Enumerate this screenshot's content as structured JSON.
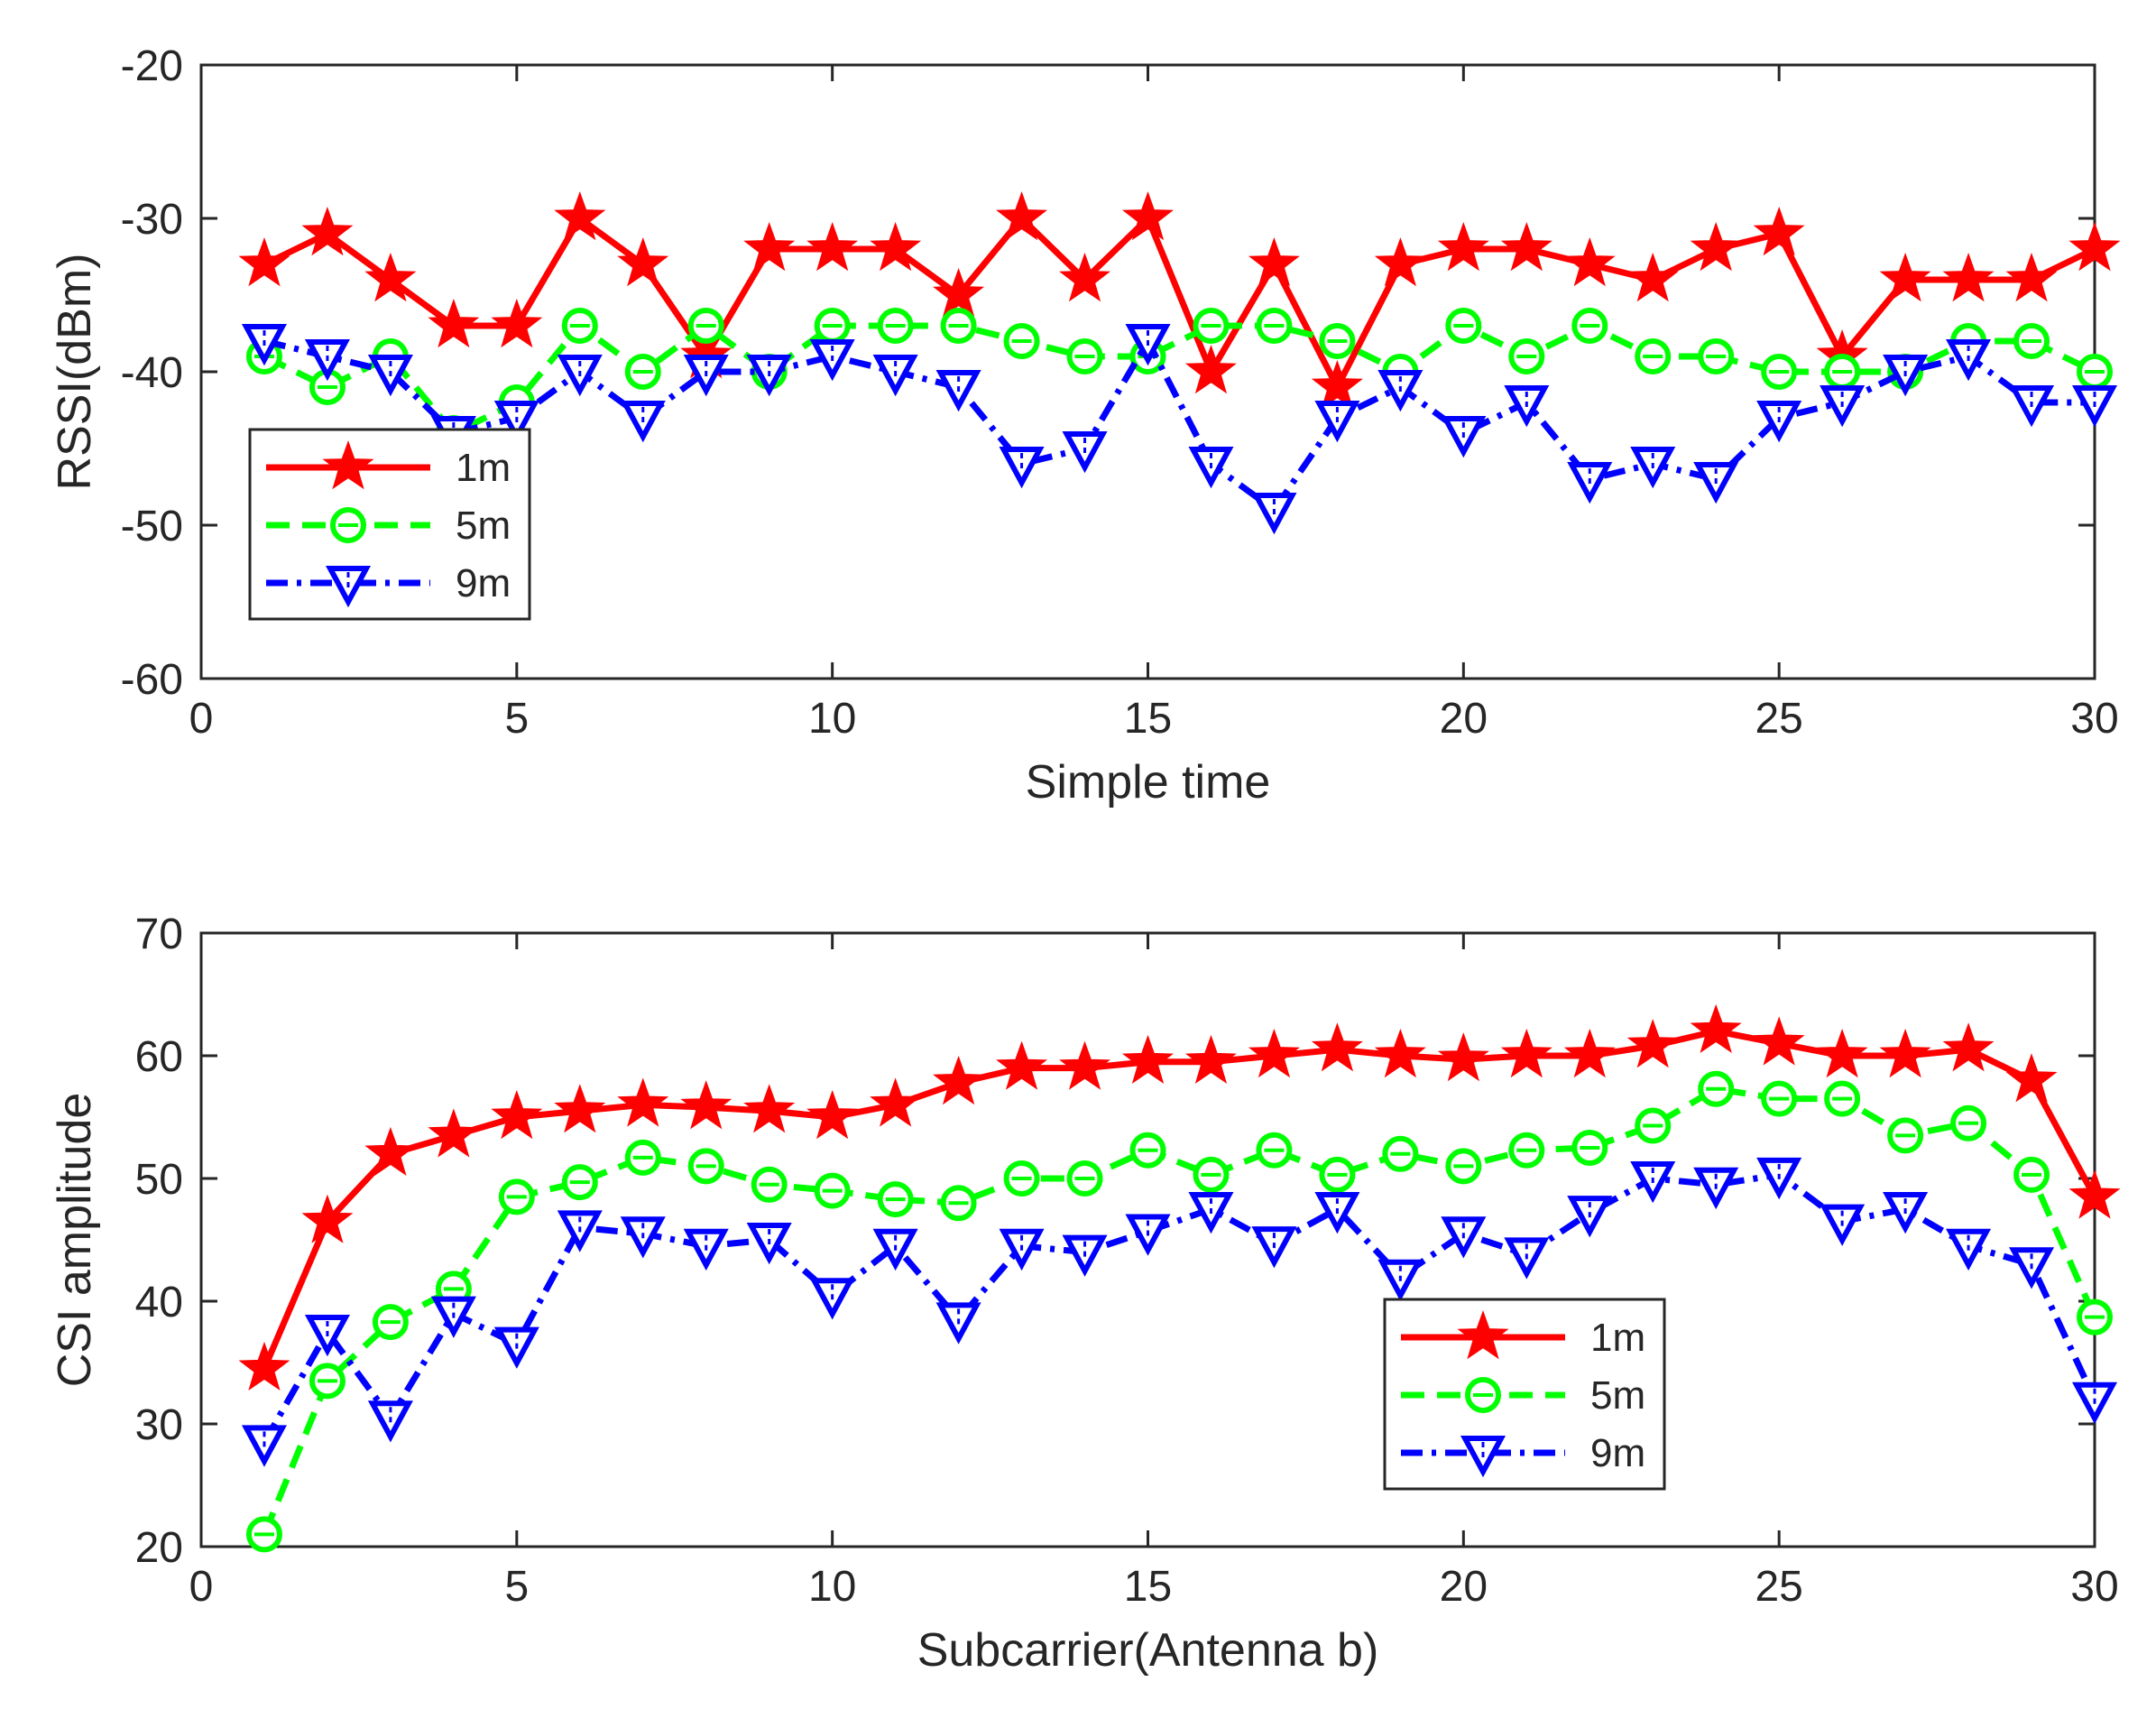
{
  "colors": {
    "series_1m": "#ff0000",
    "series_5m": "#00ff00",
    "series_9m": "#0000ff",
    "axes": "#262626",
    "background": "#ffffff"
  },
  "chart_data": [
    {
      "id": "rssi",
      "type": "line",
      "title": "",
      "xlabel": "Simple time",
      "ylabel": "RSSI(dBm)",
      "xlim": [
        0,
        30
      ],
      "ylim": [
        -60,
        -20
      ],
      "xticks": [
        0,
        5,
        10,
        15,
        20,
        25,
        30
      ],
      "yticks": [
        -60,
        -50,
        -40,
        -30,
        -20
      ],
      "grid": false,
      "legend_position": "left",
      "x": [
        1,
        2,
        3,
        4,
        5,
        6,
        7,
        8,
        9,
        10,
        11,
        12,
        13,
        14,
        15,
        16,
        17,
        18,
        19,
        20,
        21,
        22,
        23,
        24,
        25,
        26,
        27,
        28,
        29,
        30
      ],
      "series": [
        {
          "name": "1m",
          "marker": "star",
          "dash": "solid",
          "color": "#ff0000",
          "values": [
            -33,
            -31,
            -34,
            -37,
            -37,
            -30,
            -33,
            -39,
            -32,
            -32,
            -32,
            -35,
            -30,
            -34,
            -30,
            -40,
            -33,
            -41,
            -33,
            -32,
            -32,
            -33,
            -34,
            -32,
            -31,
            -39,
            -34,
            -34,
            -34,
            -32
          ]
        },
        {
          "name": "5m",
          "marker": "circle",
          "dash": "dashed",
          "color": "#00ff00",
          "values": [
            -39,
            -41,
            -39,
            -44,
            -42,
            -37,
            -40,
            -37,
            -40,
            -37,
            -37,
            -37,
            -38,
            -39,
            -39,
            -37,
            -37,
            -38,
            -40,
            -37,
            -39,
            -37,
            -39,
            -39,
            -40,
            -40,
            -40,
            -38,
            -38,
            -40
          ]
        },
        {
          "name": "9m",
          "marker": "triangle-down",
          "dash": "dashdot",
          "color": "#0000ff",
          "values": [
            -38,
            -39,
            -40,
            -44,
            -43,
            -40,
            -43,
            -40,
            -40,
            -39,
            -40,
            -41,
            -46,
            -45,
            -38,
            -46,
            -49,
            -43,
            -41,
            -44,
            -42,
            -47,
            -46,
            -47,
            -43,
            -42,
            -40,
            -39,
            -42,
            -42
          ]
        }
      ]
    },
    {
      "id": "csi",
      "type": "line",
      "title": "",
      "xlabel": "Subcarrier(Antenna b)",
      "ylabel": "CSI amplitude",
      "xlim": [
        0,
        30
      ],
      "ylim": [
        20,
        70
      ],
      "xticks": [
        0,
        5,
        10,
        15,
        20,
        25,
        30
      ],
      "yticks": [
        20,
        30,
        40,
        50,
        60,
        70
      ],
      "grid": false,
      "legend_position": "lower-right",
      "x": [
        1,
        2,
        3,
        4,
        5,
        6,
        7,
        8,
        9,
        10,
        11,
        12,
        13,
        14,
        15,
        16,
        17,
        18,
        19,
        20,
        21,
        22,
        23,
        24,
        25,
        26,
        27,
        28,
        29,
        30
      ],
      "series": [
        {
          "name": "1m",
          "marker": "star",
          "dash": "solid",
          "color": "#ff0000",
          "values": [
            34.5,
            46.5,
            52,
            53.5,
            55,
            55.5,
            56,
            55.8,
            55.5,
            55,
            56,
            57.8,
            59,
            59,
            59.5,
            59.5,
            60,
            60.5,
            60,
            59.7,
            60,
            60,
            60.8,
            62,
            61,
            60,
            60,
            60.5,
            58,
            48.5
          ]
        },
        {
          "name": "5m",
          "marker": "circle",
          "dash": "dashed",
          "color": "#00ff00",
          "values": [
            21,
            33.5,
            38.3,
            41,
            48.5,
            49.7,
            51.7,
            51,
            49.5,
            49,
            48.3,
            48,
            50,
            50,
            52.3,
            50.3,
            52.3,
            50.3,
            52,
            51,
            52.3,
            52.5,
            54.3,
            57.3,
            56.5,
            56.5,
            53.5,
            54.5,
            50.3,
            38.7
          ]
        },
        {
          "name": "9m",
          "marker": "triangle-down",
          "dash": "dashdot",
          "color": "#0000ff",
          "values": [
            28.5,
            37.5,
            30.5,
            39,
            36.5,
            46,
            45.5,
            44.5,
            45,
            40.5,
            44.5,
            38.5,
            44.5,
            44,
            45.7,
            47.5,
            44.7,
            47.5,
            42,
            45.5,
            43.8,
            47.2,
            50,
            49.5,
            50.3,
            46.5,
            47.5,
            44.5,
            43,
            32
          ]
        }
      ]
    }
  ]
}
